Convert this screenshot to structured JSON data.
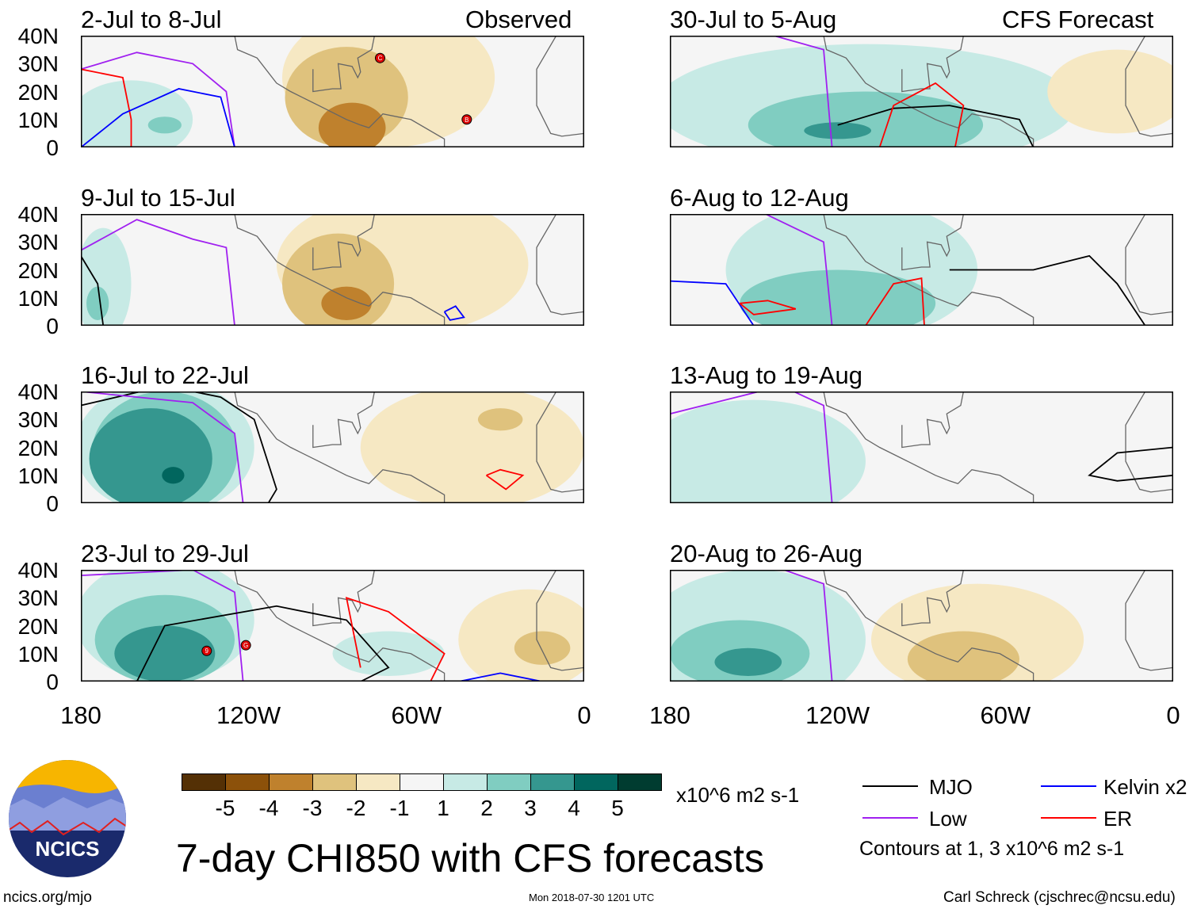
{
  "headers": {
    "left": "Observed",
    "right": "CFS Forecast"
  },
  "panels": [
    {
      "title": "2-Jul to 8-Jul",
      "markers": [
        "C",
        "B"
      ]
    },
    {
      "title": "9-Jul to 15-Jul",
      "markers": []
    },
    {
      "title": "16-Jul to 22-Jul",
      "markers": []
    },
    {
      "title": "23-Jul to 29-Jul",
      "markers": [
        "9",
        "G"
      ]
    },
    {
      "title": "30-Jul to 5-Aug",
      "markers": []
    },
    {
      "title": "6-Aug to 12-Aug",
      "markers": []
    },
    {
      "title": "13-Aug to 19-Aug",
      "markers": []
    },
    {
      "title": "20-Aug to 26-Aug",
      "markers": []
    }
  ],
  "lat_ticks": [
    "40N",
    "30N",
    "20N",
    "10N",
    "0"
  ],
  "lon_ticks": [
    "180",
    "120W",
    "60W",
    "0"
  ],
  "colorbar": {
    "colors": [
      "#543005",
      "#8c510a",
      "#bf812d",
      "#dfc27d",
      "#f6e8c3",
      "#f5f5f5",
      "#c7eae5",
      "#80cdc1",
      "#35978f",
      "#01665e",
      "#003c30"
    ],
    "labels": [
      "-5",
      "-4",
      "-3",
      "-2",
      "-1",
      "1",
      "2",
      "3",
      "4",
      "5"
    ],
    "units": "x10^6 m2 s-1"
  },
  "legend": {
    "items": [
      {
        "label": "MJO",
        "color": "#000000"
      },
      {
        "label": "Kelvin x2",
        "color": "#0000ff"
      },
      {
        "label": "Low",
        "color": "#a020f0"
      },
      {
        "label": "ER",
        "color": "#ff0000"
      }
    ],
    "note": "Contours at 1, 3 x10^6 m2 s-1"
  },
  "title": "7-day CHI850 with CFS forecasts",
  "logo": "NCICS",
  "footer": {
    "left": "ncics.org/mjo",
    "center": "Mon 2018-07-30 1201 UTC",
    "right": "Carl Schreck (cjschrec@ncsu.edu)"
  }
}
